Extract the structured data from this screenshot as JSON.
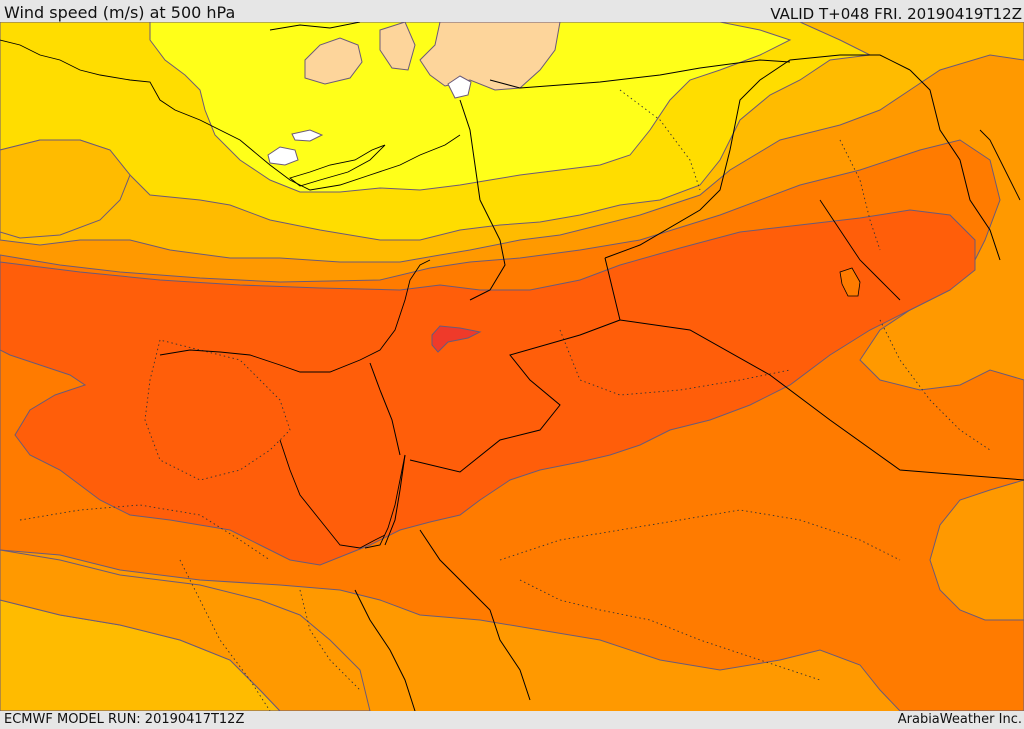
{
  "header": {
    "title": "Wind speed (m/s) at 500 hPa",
    "valid": "VALID T+048 FRI. 20190419T12Z"
  },
  "footer": {
    "model_run": "ECMWF MODEL RUN: 20190417T12Z",
    "credit": "ArabiaWeather Inc."
  },
  "colors": {
    "white": "#ffffff",
    "peach": "#fdd59b",
    "yellow": "#ffff19",
    "gold": "#ffdd00",
    "amber": "#ffbb00",
    "orange": "#ff9900",
    "dark_orange": "#ff7b00",
    "red_orange": "#ff5e0a",
    "red": "#ef3a2a",
    "contour": "#6b5a78",
    "border": "#000000"
  }
}
